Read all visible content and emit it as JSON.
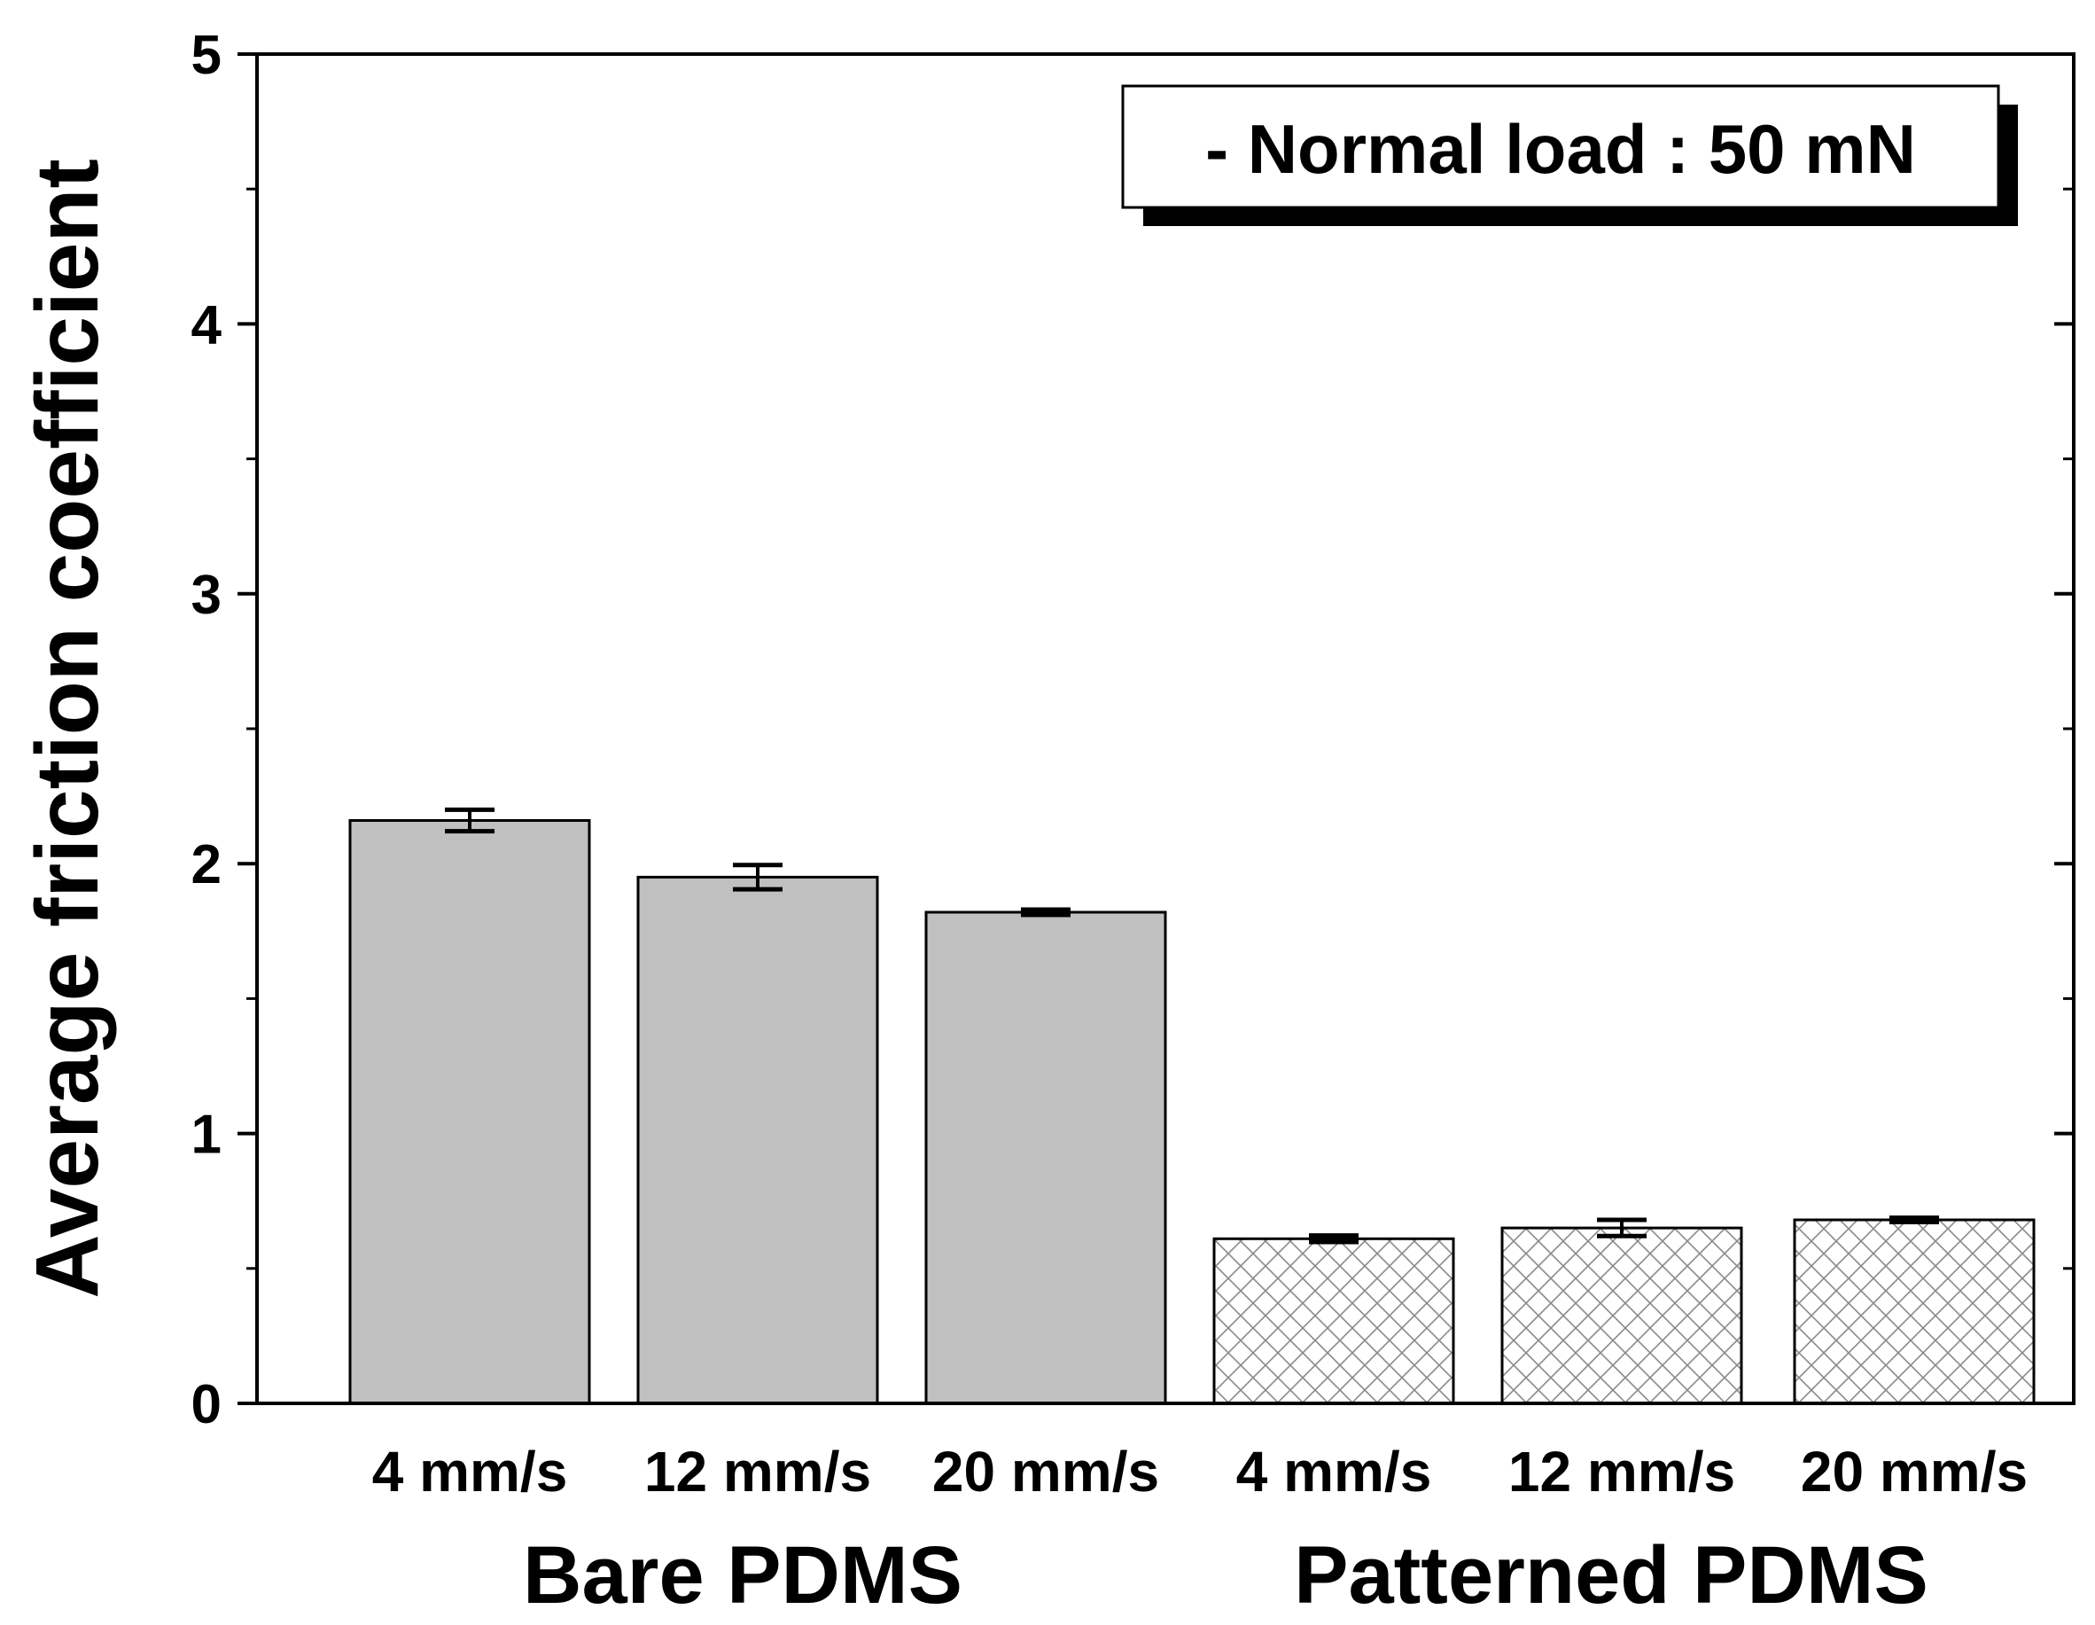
{
  "chart_data": {
    "type": "bar",
    "title": "",
    "xlabel": "",
    "ylabel": "Average friction coefficient",
    "ylim": [
      0,
      5
    ],
    "yticks": [
      "0",
      "1",
      "2",
      "3",
      "4",
      "5"
    ],
    "legend": {
      "text": "- Normal load : 50 mN",
      "placement": "top-right"
    },
    "groups": [
      {
        "name": "Bare PDMS",
        "fill": "solid-gray"
      },
      {
        "name": "Patterned PDMS",
        "fill": "crosshatch"
      }
    ],
    "bars": [
      {
        "group": "Bare PDMS",
        "category": "4 mm/s",
        "value": 2.16,
        "error": 0.04
      },
      {
        "group": "Bare PDMS",
        "category": "12 mm/s",
        "value": 1.95,
        "error": 0.045
      },
      {
        "group": "Bare PDMS",
        "category": "20 mm/s",
        "value": 1.82,
        "error": 0.01
      },
      {
        "group": "Patterned PDMS",
        "category": "4 mm/s",
        "value": 0.61,
        "error": 0.012
      },
      {
        "group": "Patterned PDMS",
        "category": "12 mm/s",
        "value": 0.65,
        "error": 0.03
      },
      {
        "group": "Patterned PDMS",
        "category": "20 mm/s",
        "value": 0.68,
        "error": 0.008
      }
    ]
  },
  "colors": {
    "bar_fill": "#c0c0c0",
    "hatch_bg": "#ffffff",
    "hatch_line": "#8a8a8a",
    "axis": "#000000"
  }
}
